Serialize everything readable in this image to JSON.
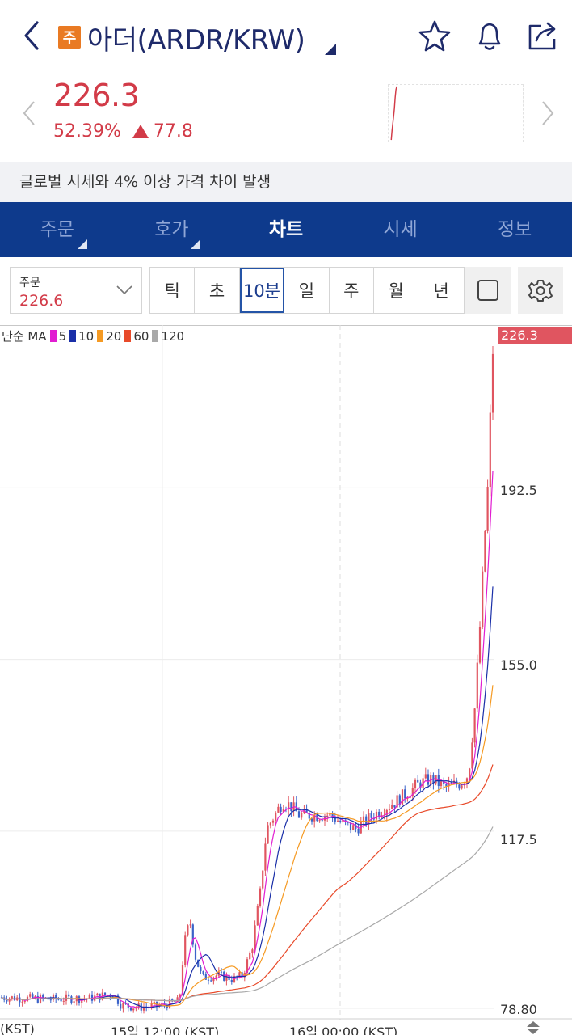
{
  "header": {
    "badge": "주",
    "title": "아더(ARDR/KRW)"
  },
  "quote": {
    "price": "226.3",
    "change_pct": "52.39%",
    "change_abs": "77.8",
    "direction": "up",
    "up_color": "#d23b48"
  },
  "notice": "글로벌 시세와 4% 이상 가격 차이 발생",
  "tabs": [
    {
      "label": "주문"
    },
    {
      "label": "호가"
    },
    {
      "label": "차트"
    },
    {
      "label": "시세"
    },
    {
      "label": "정보"
    }
  ],
  "active_tab": "차트",
  "order_select": {
    "label": "주문",
    "value": "226.6"
  },
  "periods": [
    {
      "label": "틱"
    },
    {
      "label": "초"
    },
    {
      "label": "10분"
    },
    {
      "label": "일"
    },
    {
      "label": "주"
    },
    {
      "label": "월"
    },
    {
      "label": "년"
    }
  ],
  "active_period": "10분",
  "chart_data": {
    "type": "candlestick",
    "legend_prefix": "단순 MA",
    "moving_averages": [
      {
        "name": "5",
        "color": "#e11dd1"
      },
      {
        "name": "10",
        "color": "#1a2fa8"
      },
      {
        "name": "20",
        "color": "#f59a23"
      },
      {
        "name": "60",
        "color": "#e84a2a"
      },
      {
        "name": "120",
        "color": "#a9a9a9"
      }
    ],
    "last_price": "226.3",
    "y_ticks": [
      "192.5",
      "155.0",
      "117.5",
      "78.80"
    ],
    "y_tick_values": [
      192.5,
      155.0,
      117.5,
      78.8
    ],
    "ylim": [
      78.8,
      226.3
    ],
    "x_ticks": [
      "(KST)",
      "15일 12:00 (KST)",
      "16일 00:00 (KST)"
    ],
    "up_color": "#e05560",
    "down_color": "#3b63c9",
    "grid": true
  }
}
